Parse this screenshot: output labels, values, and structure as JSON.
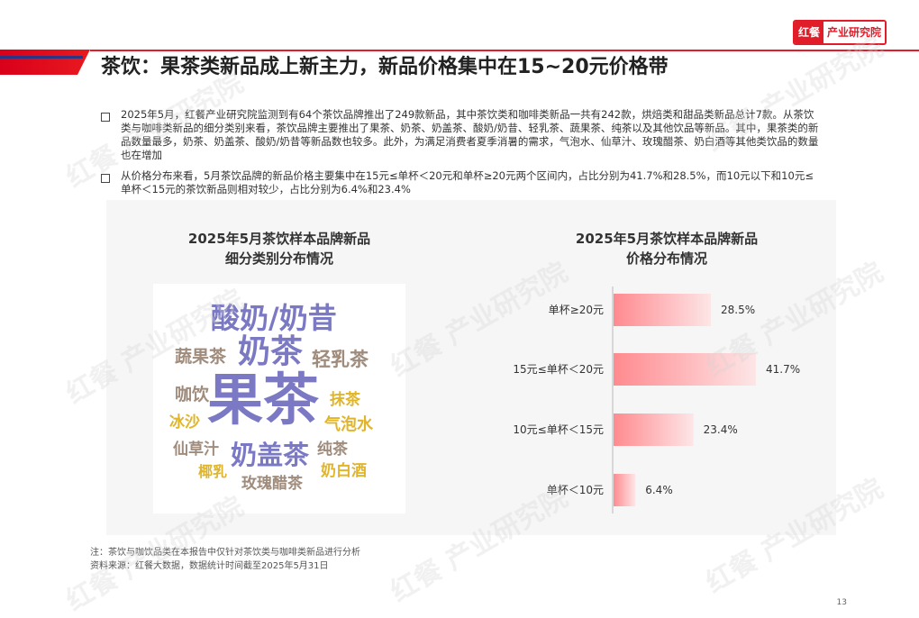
{
  "logo": {
    "brand": "红餐",
    "text": "产业研究院"
  },
  "page_title": "茶饮：果茶类新品成上新主力，新品价格集中在15~20元价格带",
  "bullets": [
    "2025年5月，红餐产业研究院监测到有64个茶饮品牌推出了249款新品，其中茶饮类和咖啡类新品一共有242款，烘焙类和甜品类新品总计7款。从茶饮类与咖啡类新品的细分类别来看，茶饮品牌主要推出了果茶、奶茶、奶盖茶、酸奶/奶昔、轻乳茶、蔬果茶、纯茶以及其他饮品等新品。其中，果茶类的新品数量最多，奶茶、奶盖茶、酸奶/奶昔等新品数也较多。此外，为满足消费者夏季消暑的需求，气泡水、仙草汁、玫瑰醋茶、奶白酒等其他类饮品的数量也在增加",
    "从价格分布来看，5月茶饮品牌的新品价格主要集中在15元≤单杯＜20元和单杯≥20元两个区间内，占比分别为41.7%和28.5%，而10元以下和10元≤单杯＜15元的茶饮新品则相对较少，占比分别为6.4%和23.4%"
  ],
  "wordcloud": {
    "title_line1": "2025年5月茶饮样本品牌新品",
    "title_line2": "细分类别分布情况",
    "words": [
      {
        "text": "酸奶/奶昔",
        "color": "#7b78c4"
      },
      {
        "text": "蔬果茶",
        "color": "#a08c7c"
      },
      {
        "text": "奶茶",
        "color": "#7b78c4"
      },
      {
        "text": "轻乳茶",
        "color": "#a08c7c"
      },
      {
        "text": "咖饮",
        "color": "#a08c7c"
      },
      {
        "text": "果茶",
        "color": "#7b78c4"
      },
      {
        "text": "抹茶",
        "color": "#e0b52b"
      },
      {
        "text": "冰沙",
        "color": "#e0b52b"
      },
      {
        "text": "气泡水",
        "color": "#e0b52b"
      },
      {
        "text": "仙草汁",
        "color": "#a08c7c"
      },
      {
        "text": "奶盖茶",
        "color": "#7b78c4"
      },
      {
        "text": "纯茶",
        "color": "#a08c7c"
      },
      {
        "text": "椰乳",
        "color": "#e0b52b"
      },
      {
        "text": "奶白酒",
        "color": "#e0b52b"
      },
      {
        "text": "玫瑰醋茶",
        "color": "#a08c7c"
      }
    ]
  },
  "chart_data": {
    "type": "bar",
    "orientation": "horizontal",
    "title": "2025年5月茶饮样本品牌新品价格分布情况",
    "title_line1": "2025年5月茶饮样本品牌新品",
    "title_line2": "价格分布情况",
    "categories": [
      "单杯≥20元",
      "15元≤单杯＜20元",
      "10元≤单杯＜15元",
      "单杯＜10元"
    ],
    "values": [
      28.5,
      41.7,
      23.4,
      6.4
    ],
    "value_labels": [
      "28.5%",
      "41.7%",
      "23.4%",
      "6.4%"
    ],
    "unit": "%",
    "xlim": [
      0,
      41.7
    ],
    "grid": false,
    "legend": "none",
    "bar_color_start": "#ff8a8f",
    "bar_color_end": "#fde6e7"
  },
  "notes": [
    "注：茶饮与咖饮品类在本报告中仅针对茶饮类与咖啡类新品进行分析",
    "资料来源：红餐大数据，数据统计时间截至2025年5月31日"
  ],
  "page_number": "13",
  "watermark_text": "红餐 产业研究院"
}
